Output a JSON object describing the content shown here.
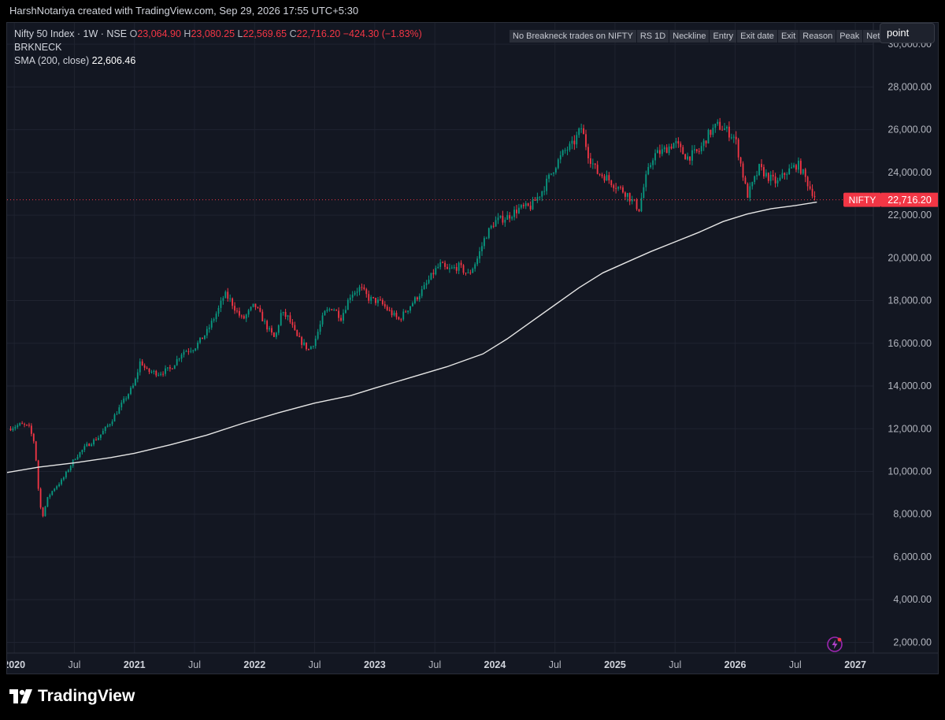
{
  "attribution": "HarshNotariya created with TradingView.com, Sep 29, 2026 17:55 UTC+5:30",
  "legend": {
    "symbol": "Nifty 50 Index · 1W · NSE",
    "o_label": "O",
    "o_value": "23,064.90",
    "h_label": "H",
    "h_value": "23,080.25",
    "l_label": "L",
    "l_value": "22,569.65",
    "c_label": "C",
    "c_value": "22,716.20",
    "change": "−424.30 (−1.83%)",
    "indicator1": "BRKNECK",
    "sma_label": "SMA (200, close)",
    "sma_value": "22,606.46"
  },
  "columns": [
    "No Breakneck trades on NIFTY",
    "RS 1D",
    "Neckline",
    "Entry",
    "Exit date",
    "Exit",
    "Reason",
    "Peak",
    "Net"
  ],
  "mode": "point",
  "price_tag": {
    "name": "NIFTY",
    "value": "22,716.20"
  },
  "brand": "TradingView",
  "colors": {
    "up": "#089981",
    "down": "#f23645",
    "sma": "#e6e6e6",
    "bg": "#131722",
    "grid": "#1f2330"
  },
  "chart_data": {
    "type": "candlestick",
    "y_ticks": [
      "2,000.00",
      "4,000.00",
      "6,000.00",
      "8,000.00",
      "10,000.00",
      "12,000.00",
      "14,000.00",
      "16,000.00",
      "18,000.00",
      "20,000.00",
      "22,000.00",
      "24,000.00",
      "26,000.00",
      "28,000.00",
      "30,000.00"
    ],
    "ylim": [
      1500,
      31000
    ],
    "x_ticks": [
      {
        "label": "2020",
        "t": 2020.0,
        "bold": true
      },
      {
        "label": "Jul",
        "t": 2020.5
      },
      {
        "label": "2021",
        "t": 2021.0,
        "bold": true
      },
      {
        "label": "Jul",
        "t": 2021.5
      },
      {
        "label": "2022",
        "t": 2022.0,
        "bold": true
      },
      {
        "label": "Jul",
        "t": 2022.5
      },
      {
        "label": "2023",
        "t": 2023.0,
        "bold": true
      },
      {
        "label": "Jul",
        "t": 2023.5
      },
      {
        "label": "2024",
        "t": 2024.0,
        "bold": true
      },
      {
        "label": "Jul",
        "t": 2024.5
      },
      {
        "label": "2025",
        "t": 2025.0,
        "bold": true
      },
      {
        "label": "Jul",
        "t": 2025.5
      },
      {
        "label": "2026",
        "t": 2026.0,
        "bold": true
      },
      {
        "label": "Jul",
        "t": 2026.5
      },
      {
        "label": "2027",
        "t": 2027.0,
        "bold": true
      }
    ],
    "xlim": [
      2019.94,
      2027.15
    ],
    "close_path": [
      [
        2019.95,
        12000
      ],
      [
        2020.05,
        12200
      ],
      [
        2020.12,
        12100
      ],
      [
        2020.17,
        11300
      ],
      [
        2020.2,
        9200
      ],
      [
        2020.23,
        7800
      ],
      [
        2020.28,
        8800
      ],
      [
        2020.33,
        9200
      ],
      [
        2020.4,
        9600
      ],
      [
        2020.5,
        10600
      ],
      [
        2020.6,
        11200
      ],
      [
        2020.7,
        11600
      ],
      [
        2020.8,
        12300
      ],
      [
        2020.9,
        13200
      ],
      [
        2021.0,
        14100
      ],
      [
        2021.05,
        15200
      ],
      [
        2021.1,
        14700
      ],
      [
        2021.2,
        14600
      ],
      [
        2021.3,
        14800
      ],
      [
        2021.4,
        15600
      ],
      [
        2021.5,
        15800
      ],
      [
        2021.6,
        16500
      ],
      [
        2021.7,
        17600
      ],
      [
        2021.75,
        18300
      ],
      [
        2021.8,
        18000
      ],
      [
        2021.85,
        17500
      ],
      [
        2021.9,
        17100
      ],
      [
        2022.0,
        17800
      ],
      [
        2022.05,
        17300
      ],
      [
        2022.12,
        16600
      ],
      [
        2022.17,
        16200
      ],
      [
        2022.22,
        17400
      ],
      [
        2022.28,
        17200
      ],
      [
        2022.35,
        16300
      ],
      [
        2022.45,
        15700
      ],
      [
        2022.5,
        16100
      ],
      [
        2022.58,
        17400
      ],
      [
        2022.65,
        17700
      ],
      [
        2022.72,
        17200
      ],
      [
        2022.8,
        18300
      ],
      [
        2022.88,
        18600
      ],
      [
        2022.95,
        18100
      ],
      [
        2023.05,
        17900
      ],
      [
        2023.12,
        17500
      ],
      [
        2023.2,
        17100
      ],
      [
        2023.3,
        17800
      ],
      [
        2023.4,
        18500
      ],
      [
        2023.5,
        19400
      ],
      [
        2023.55,
        19700
      ],
      [
        2023.6,
        19400
      ],
      [
        2023.7,
        19600
      ],
      [
        2023.78,
        19200
      ],
      [
        2023.85,
        19900
      ],
      [
        2023.92,
        21000
      ],
      [
        2024.0,
        21700
      ],
      [
        2024.1,
        21900
      ],
      [
        2024.2,
        22300
      ],
      [
        2024.3,
        22400
      ],
      [
        2024.4,
        23200
      ],
      [
        2024.5,
        24300
      ],
      [
        2024.58,
        25000
      ],
      [
        2024.65,
        25300
      ],
      [
        2024.72,
        26100
      ],
      [
        2024.78,
        24800
      ],
      [
        2024.85,
        24000
      ],
      [
        2024.92,
        23800
      ],
      [
        2025.0,
        23400
      ],
      [
        2025.1,
        23000
      ],
      [
        2025.15,
        22600
      ],
      [
        2025.2,
        22300
      ],
      [
        2025.25,
        23600
      ],
      [
        2025.32,
        24800
      ],
      [
        2025.4,
        25000
      ],
      [
        2025.5,
        25400
      ],
      [
        2025.55,
        25000
      ],
      [
        2025.6,
        24700
      ],
      [
        2025.7,
        25000
      ],
      [
        2025.78,
        25800
      ],
      [
        2025.85,
        26200
      ],
      [
        2025.92,
        26000
      ],
      [
        2026.0,
        25600
      ],
      [
        2026.05,
        24300
      ],
      [
        2026.1,
        22900
      ],
      [
        2026.15,
        23500
      ],
      [
        2026.2,
        24200
      ],
      [
        2026.27,
        23800
      ],
      [
        2026.35,
        23500
      ],
      [
        2026.42,
        24000
      ],
      [
        2026.48,
        24200
      ],
      [
        2026.52,
        24400
      ],
      [
        2026.57,
        23900
      ],
      [
        2026.62,
        23300
      ],
      [
        2026.68,
        22716
      ]
    ],
    "sma": [
      [
        2019.94,
        9950
      ],
      [
        2020.2,
        10200
      ],
      [
        2020.5,
        10400
      ],
      [
        2020.8,
        10650
      ],
      [
        2021.0,
        10850
      ],
      [
        2021.3,
        11250
      ],
      [
        2021.6,
        11700
      ],
      [
        2021.9,
        12250
      ],
      [
        2022.2,
        12750
      ],
      [
        2022.5,
        13200
      ],
      [
        2022.8,
        13550
      ],
      [
        2023.0,
        13900
      ],
      [
        2023.3,
        14400
      ],
      [
        2023.6,
        14900
      ],
      [
        2023.9,
        15500
      ],
      [
        2024.1,
        16200
      ],
      [
        2024.3,
        17000
      ],
      [
        2024.5,
        17800
      ],
      [
        2024.7,
        18600
      ],
      [
        2024.9,
        19300
      ],
      [
        2025.1,
        19800
      ],
      [
        2025.3,
        20300
      ],
      [
        2025.5,
        20750
      ],
      [
        2025.7,
        21200
      ],
      [
        2025.9,
        21700
      ],
      [
        2026.1,
        22050
      ],
      [
        2026.3,
        22300
      ],
      [
        2026.5,
        22450
      ],
      [
        2026.68,
        22606
      ]
    ]
  }
}
